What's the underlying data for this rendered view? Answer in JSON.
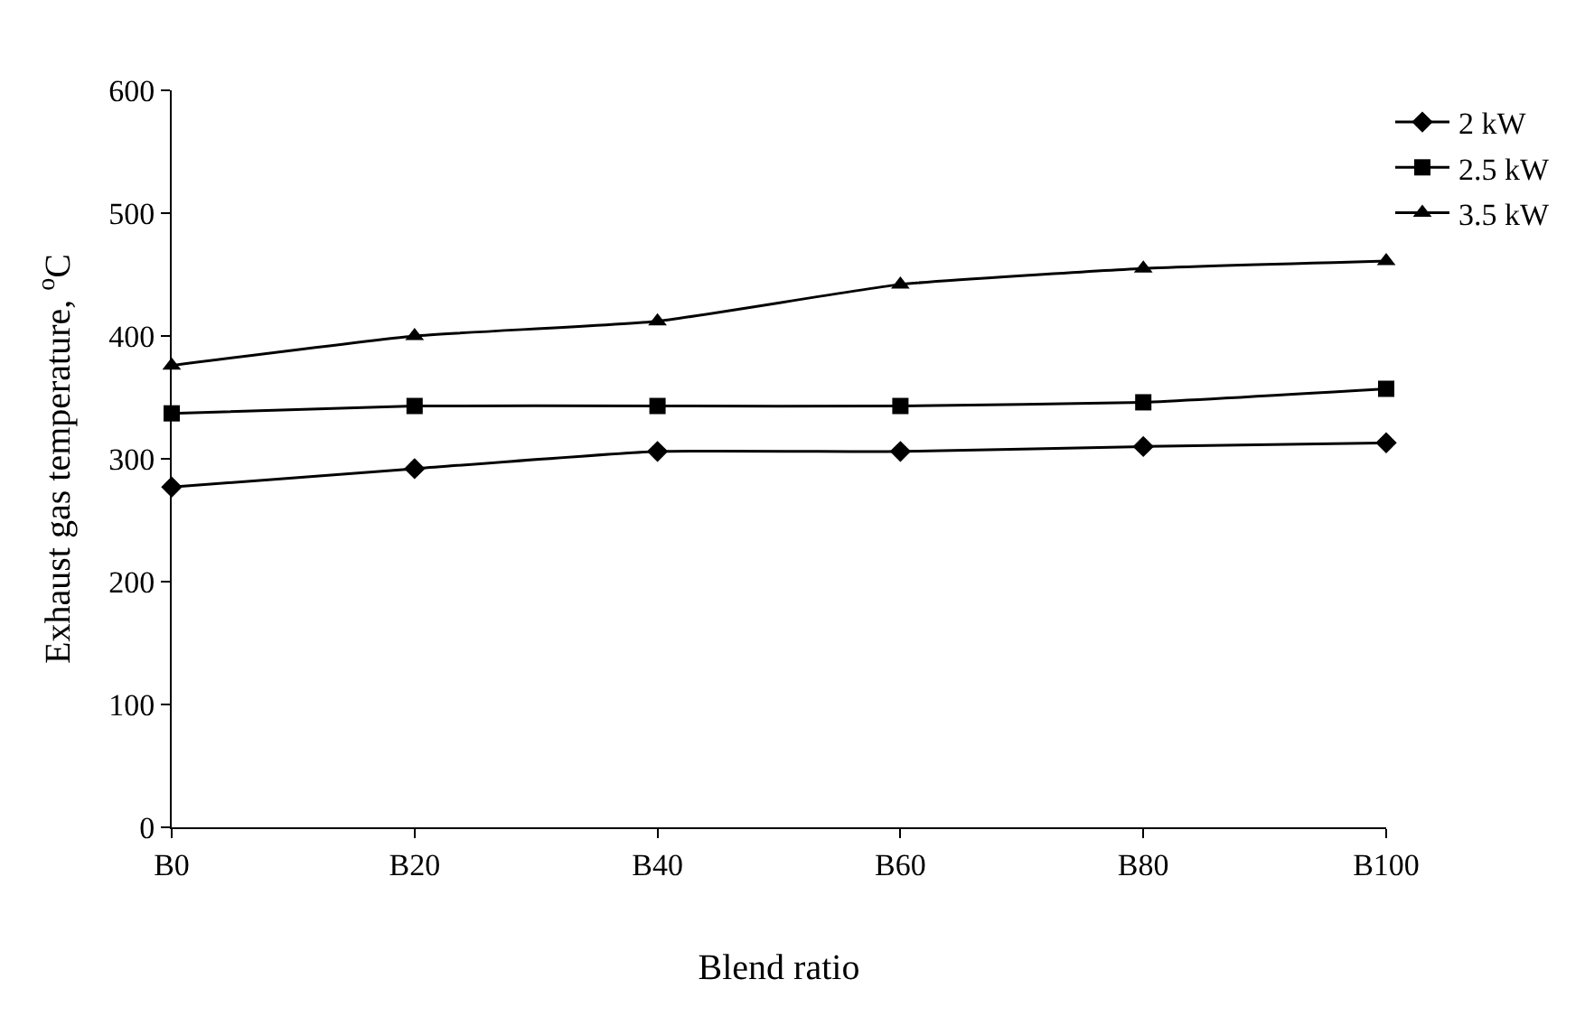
{
  "chart_data": {
    "type": "line",
    "xlabel": "Blend ratio",
    "ylabel": "Exhaust gas temperature, $^{o}$C",
    "categories": [
      "B0",
      "B20",
      "B40",
      "B60",
      "B80",
      "B100"
    ],
    "series": [
      {
        "name": "2 kW",
        "color": "#000000",
        "marker": "diamond",
        "values": [
          277,
          292,
          306,
          306,
          310,
          313
        ]
      },
      {
        "name": "2.5 kW",
        "color": "#000000",
        "marker": "square",
        "values": [
          337,
          343,
          343,
          343,
          346,
          357
        ]
      },
      {
        "name": "3.5 kW",
        "color": "#000000",
        "marker": "triangle",
        "values": [
          376,
          400,
          412,
          442,
          455,
          461
        ]
      }
    ],
    "ylim": [
      0,
      600
    ],
    "yticks": [
      0,
      100,
      200,
      300,
      400,
      500,
      600
    ],
    "legend": "top right",
    "line_style": "solid"
  }
}
